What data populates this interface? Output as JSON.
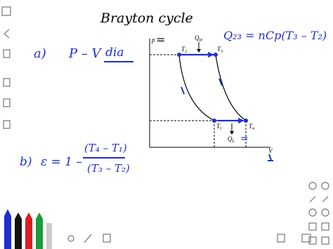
{
  "notes": {
    "title": "Brayton cycle",
    "part_a": {
      "label": "a)",
      "text": "P – V",
      "abbrev": "dia",
      "equals": "=",
      "equation": "Q₂₃ = nCp(T₃ – T₂)"
    },
    "part_b": {
      "label": "b)",
      "lhs": "ε = 1 –",
      "numerator": "(T₄ – T₁)",
      "denominator": "(T₃ – T₂)"
    }
  },
  "diagram": {
    "axis_y": "p",
    "axis_x": "V",
    "states": [
      {
        "symbol": "T",
        "subscript": "2"
      },
      {
        "symbol": "T",
        "subscript": "3"
      },
      {
        "symbol": "T",
        "subscript": "1"
      },
      {
        "symbol": "T",
        "subscript": "4"
      }
    ],
    "heat_in": {
      "symbol": "Q",
      "subscript": "H"
    },
    "heat_out": {
      "symbol": "Q",
      "subscript": "L"
    },
    "mark": "="
  }
}
